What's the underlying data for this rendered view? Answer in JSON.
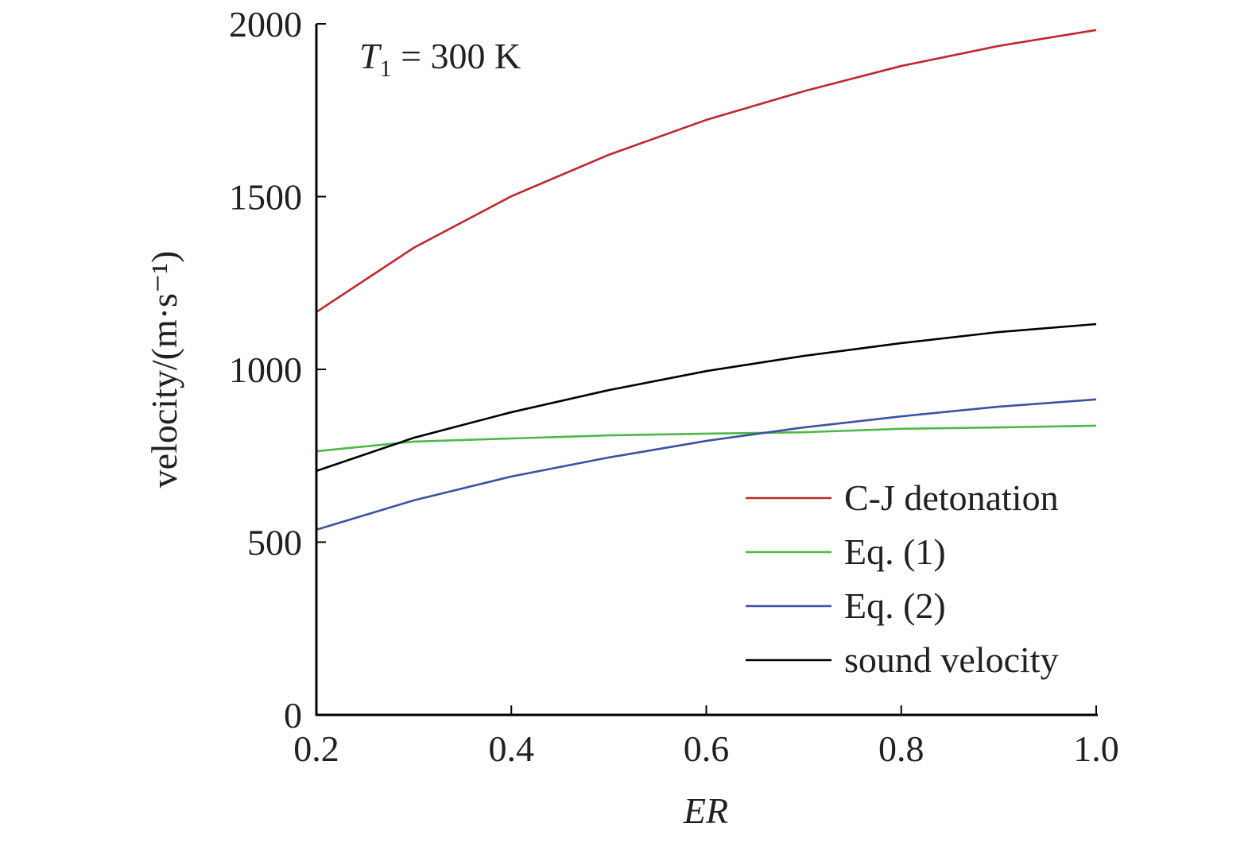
{
  "chart_data": {
    "type": "line",
    "xlabel": "ER",
    "ylabel": "velocity/(m·s⁻¹)",
    "annotation": {
      "symbol": "T",
      "subscript": "1",
      "rest": " = 300 K"
    },
    "xlim": [
      0.2,
      1.0
    ],
    "ylim": [
      0,
      2000
    ],
    "xticks": [
      "0.2",
      "0.4",
      "0.6",
      "0.8",
      "1.0"
    ],
    "yticks": [
      "0",
      "500",
      "1000",
      "1500",
      "2000"
    ],
    "grid": false,
    "legend_position": "bottom-right",
    "x": [
      0.2,
      0.3,
      0.4,
      0.5,
      0.6,
      0.7,
      0.8,
      0.9,
      1.0
    ],
    "series": [
      {
        "name": "C-J detonation",
        "color": "#c1272d",
        "values": [
          1166,
          1352,
          1501,
          1621,
          1722,
          1805,
          1878,
          1936,
          1982
        ]
      },
      {
        "name": "Eq. (1)",
        "color": "#4db848",
        "values": [
          763,
          791,
          800,
          809,
          814,
          818,
          828,
          832,
          837
        ]
      },
      {
        "name": "Eq. (2)",
        "color": "#3c52a3",
        "values": [
          536,
          621,
          690,
          745,
          793,
          832,
          864,
          892,
          913
        ]
      },
      {
        "name": "sound velocity",
        "color": "#000000",
        "values": [
          706,
          802,
          876,
          940,
          995,
          1039,
          1076,
          1108,
          1131
        ]
      }
    ]
  }
}
